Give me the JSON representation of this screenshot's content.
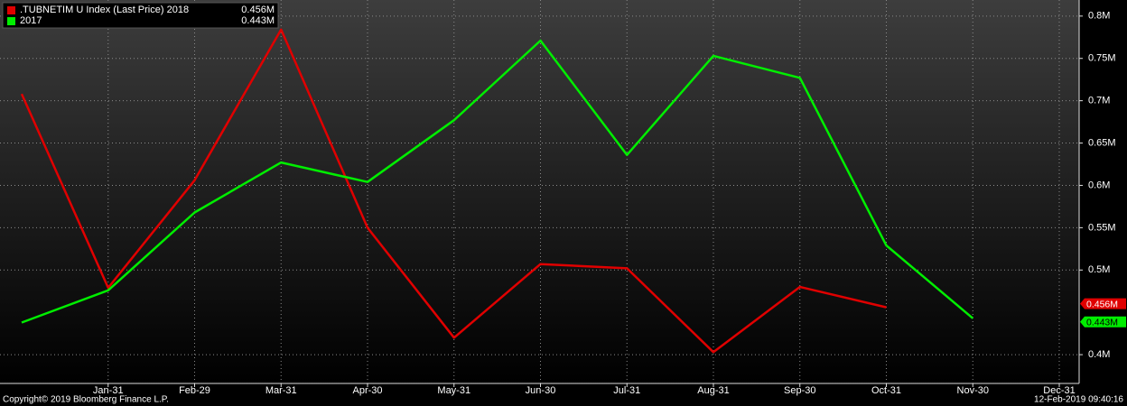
{
  "chart_data": {
    "type": "line",
    "categories": [
      null,
      "Jan-31",
      "Feb-29",
      "Mar-31",
      "Apr-30",
      "May-31",
      "Jun-30",
      "Jul-31",
      "Aug-31",
      "Sep-30",
      "Oct-31",
      "Nov-30",
      "Dec-31"
    ],
    "series": [
      {
        "name": ".TUBNETIM U Index (Last Price) 2018",
        "color": "#e00000",
        "last_label": "0.456M",
        "values": [
          0.708,
          0.479,
          0.606,
          0.784,
          0.55,
          0.42,
          0.507,
          0.502,
          0.403,
          0.48,
          0.456,
          null,
          null
        ]
      },
      {
        "name": "2017",
        "color": "#00ee00",
        "last_label": "0.443M",
        "values": [
          0.438,
          0.476,
          0.568,
          0.627,
          0.604,
          0.677,
          0.771,
          0.636,
          0.753,
          0.727,
          0.529,
          0.443,
          null
        ]
      }
    ],
    "ylim": [
      0.366,
      0.819
    ],
    "yticks": [
      {
        "value": 0.4,
        "label": "0.4M"
      },
      {
        "value": 0.5,
        "label": "0.5M"
      },
      {
        "value": 0.55,
        "label": "0.55M"
      },
      {
        "value": 0.6,
        "label": "0.6M"
      },
      {
        "value": 0.65,
        "label": "0.65M"
      },
      {
        "value": 0.7,
        "label": "0.7M"
      },
      {
        "value": 0.75,
        "label": "0.75M"
      },
      {
        "value": 0.8,
        "label": "0.8M"
      }
    ],
    "grid": true,
    "footer_left": "Copyright© 2019 Bloomberg Finance L.P.",
    "footer_right": "12-Feb-2019 09:40:16"
  }
}
